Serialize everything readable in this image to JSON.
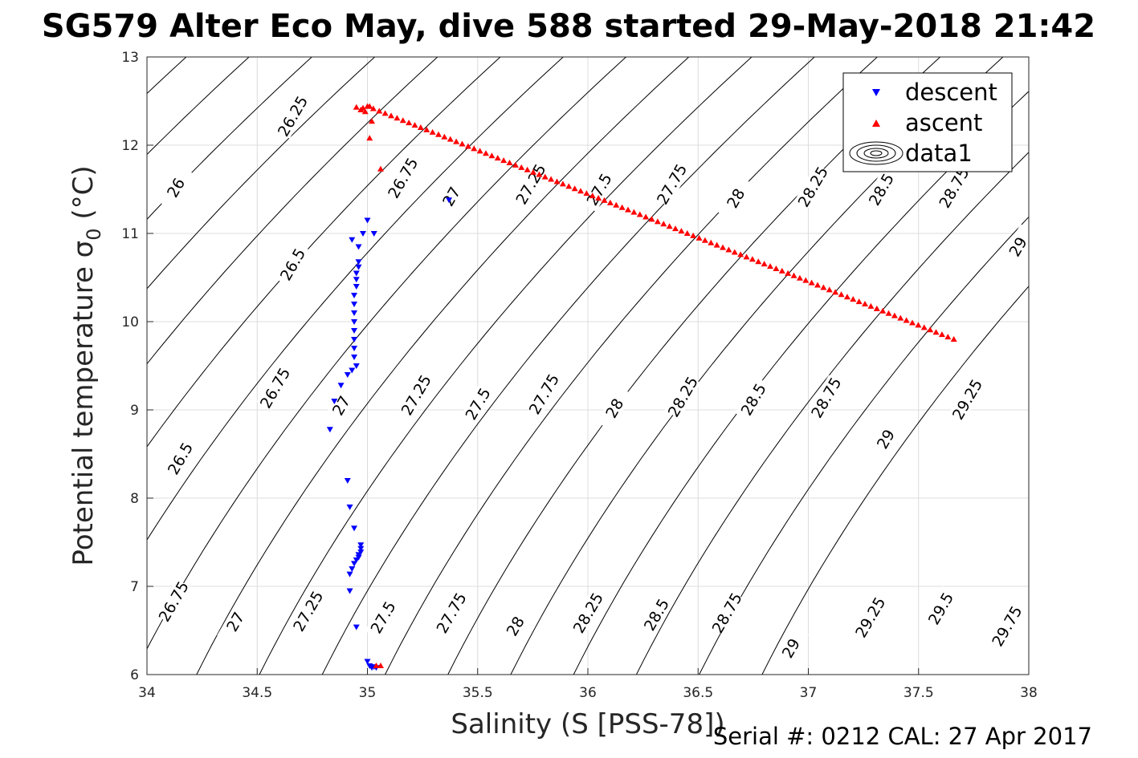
{
  "title": "SG579 Alter Eco May, dive 588 started 29-May-2018 21:42",
  "footer": "Serial #: 0212  CAL: 27 Apr 2017",
  "chart_data": {
    "type": "scatter",
    "xlabel": "Salinity (S [PSS-78])",
    "ylabel_main": "Potential temperature ",
    "ylabel_symbol": "σ",
    "ylabel_sub": "0",
    "ylabel_unit": " (°C)",
    "xlim": [
      34,
      38
    ],
    "ylim": [
      6,
      13
    ],
    "xticks": [
      "34",
      "34.5",
      "35",
      "35.5",
      "36",
      "36.5",
      "37",
      "37.5",
      "38"
    ],
    "yticks": [
      "6",
      "7",
      "8",
      "9",
      "10",
      "11",
      "12",
      "13"
    ],
    "grid": true,
    "legend_position": "top-right",
    "colors": {
      "descent": "#0000ff",
      "ascent": "#ff0000",
      "contour": "#000000",
      "grid": "#dcdcdc"
    },
    "legend": [
      "descent",
      "ascent",
      "data1"
    ],
    "contour_labels": [
      {
        "text": "26.25",
        "x": 34.66,
        "y": 12.33
      },
      {
        "text": "26",
        "x": 34.13,
        "y": 11.52
      },
      {
        "text": "26.5",
        "x": 34.66,
        "y": 10.65
      },
      {
        "text": "26.75",
        "x": 35.16,
        "y": 11.63
      },
      {
        "text": "27",
        "x": 35.38,
        "y": 11.42
      },
      {
        "text": "27.25",
        "x": 35.74,
        "y": 11.56
      },
      {
        "text": "27.5",
        "x": 36.05,
        "y": 11.5
      },
      {
        "text": "27.75",
        "x": 36.38,
        "y": 11.56
      },
      {
        "text": "28",
        "x": 36.67,
        "y": 11.4
      },
      {
        "text": "28.25",
        "x": 37.02,
        "y": 11.53
      },
      {
        "text": "28.5",
        "x": 37.33,
        "y": 11.5
      },
      {
        "text": "28.75",
        "x": 37.66,
        "y": 11.52
      },
      {
        "text": "29",
        "x": 37.95,
        "y": 10.85
      },
      {
        "text": "26.75",
        "x": 34.58,
        "y": 9.25
      },
      {
        "text": "27",
        "x": 34.88,
        "y": 9.05
      },
      {
        "text": "27.25",
        "x": 35.22,
        "y": 9.17
      },
      {
        "text": "27.5",
        "x": 35.5,
        "y": 9.07
      },
      {
        "text": "27.75",
        "x": 35.8,
        "y": 9.18
      },
      {
        "text": "28",
        "x": 36.12,
        "y": 9.02
      },
      {
        "text": "28.25",
        "x": 36.43,
        "y": 9.15
      },
      {
        "text": "28.5",
        "x": 36.75,
        "y": 9.12
      },
      {
        "text": "28.75",
        "x": 37.08,
        "y": 9.14
      },
      {
        "text": "29",
        "x": 37.35,
        "y": 8.67
      },
      {
        "text": "29.25",
        "x": 37.72,
        "y": 9.12
      },
      {
        "text": "26.5",
        "x": 34.15,
        "y": 8.45
      },
      {
        "text": "26.75",
        "x": 34.12,
        "y": 6.83
      },
      {
        "text": "27",
        "x": 34.4,
        "y": 6.6
      },
      {
        "text": "27.25",
        "x": 34.73,
        "y": 6.72
      },
      {
        "text": "27.5",
        "x": 35.07,
        "y": 6.65
      },
      {
        "text": "27.75",
        "x": 35.38,
        "y": 6.7
      },
      {
        "text": "28",
        "x": 35.67,
        "y": 6.55
      },
      {
        "text": "28.25",
        "x": 36.0,
        "y": 6.7
      },
      {
        "text": "28.5",
        "x": 36.31,
        "y": 6.68
      },
      {
        "text": "28.75",
        "x": 36.63,
        "y": 6.7
      },
      {
        "text": "29",
        "x": 36.92,
        "y": 6.3
      },
      {
        "text": "29.25",
        "x": 37.28,
        "y": 6.65
      },
      {
        "text": "29.5",
        "x": 37.6,
        "y": 6.75
      },
      {
        "text": "29.75",
        "x": 37.9,
        "y": 6.55
      }
    ],
    "series": [
      {
        "name": "descent",
        "marker": "triangle-down",
        "points": [
          [
            35.37,
            11.38
          ],
          [
            35.0,
            11.15
          ],
          [
            34.98,
            11.0
          ],
          [
            34.93,
            10.93
          ],
          [
            34.96,
            10.85
          ],
          [
            35.03,
            11.0
          ],
          [
            34.96,
            10.68
          ],
          [
            34.96,
            10.62
          ],
          [
            34.95,
            10.55
          ],
          [
            34.95,
            10.48
          ],
          [
            34.95,
            10.4
          ],
          [
            34.94,
            10.3
          ],
          [
            34.94,
            10.2
          ],
          [
            34.94,
            10.1
          ],
          [
            34.94,
            10.0
          ],
          [
            34.94,
            9.9
          ],
          [
            34.94,
            9.8
          ],
          [
            34.94,
            9.7
          ],
          [
            34.94,
            9.6
          ],
          [
            34.95,
            9.5
          ],
          [
            34.93,
            9.45
          ],
          [
            34.91,
            9.4
          ],
          [
            34.88,
            9.28
          ],
          [
            34.85,
            9.1
          ],
          [
            34.83,
            8.78
          ],
          [
            34.91,
            8.2
          ],
          [
            34.92,
            7.9
          ],
          [
            34.94,
            7.66
          ],
          [
            34.97,
            7.47
          ],
          [
            34.97,
            7.43
          ],
          [
            34.97,
            7.39
          ],
          [
            34.96,
            7.36
          ],
          [
            34.96,
            7.33
          ],
          [
            34.95,
            7.3
          ],
          [
            34.94,
            7.26
          ],
          [
            34.93,
            7.2
          ],
          [
            34.92,
            7.14
          ],
          [
            34.92,
            6.95
          ],
          [
            34.95,
            6.54
          ],
          [
            35.0,
            6.15
          ],
          [
            35.01,
            6.1
          ],
          [
            35.02,
            6.08
          ],
          [
            35.04,
            6.08
          ],
          [
            35.03,
            6.09
          ]
        ]
      },
      {
        "name": "ascent",
        "marker": "triangle-up",
        "line_series": {
          "x_start": 35.0,
          "y_start": 12.44,
          "x_end": 37.66,
          "y_end": 9.8,
          "count": 100
        },
        "points": [
          [
            34.95,
            12.43
          ],
          [
            34.98,
            12.42
          ],
          [
            35.01,
            12.44
          ],
          [
            34.97,
            12.4
          ],
          [
            34.99,
            12.38
          ],
          [
            35.02,
            12.27
          ],
          [
            35.01,
            12.08
          ],
          [
            35.06,
            11.73
          ],
          [
            35.06,
            6.1
          ],
          [
            35.04,
            6.1
          ]
        ]
      }
    ]
  }
}
